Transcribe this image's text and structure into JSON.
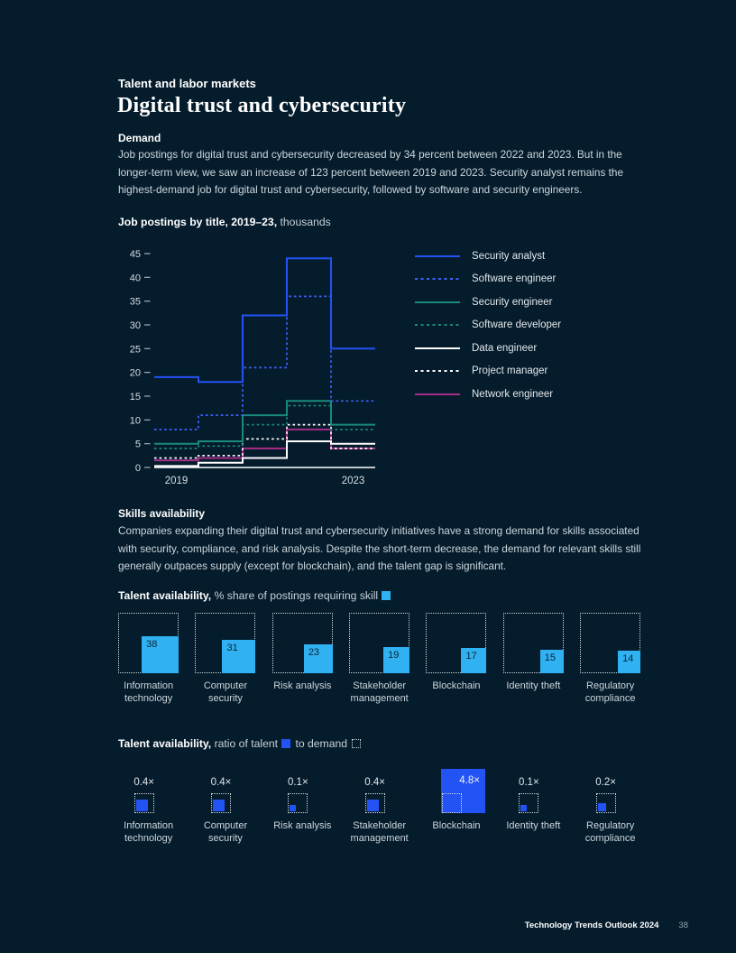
{
  "page": {
    "eyebrow": "Talent and labor markets",
    "title": "Digital trust and cybersecurity"
  },
  "sections": {
    "demand": {
      "heading": "Demand",
      "body": "Job postings for digital trust and cybersecurity decreased by 34 percent between 2022 and 2023. But in the longer-term view, we saw an increase of 123 percent between 2019 and 2023. Security analyst remains the highest-demand job for digital trust and cybersecurity, followed by software and security engineers."
    },
    "skills": {
      "heading": "Skills availability",
      "body": "Companies expanding their digital trust and cybersecurity initiatives have a strong demand for skills associated with security, compliance, and risk analysis. Despite the short-term decrease, the demand for relevant skills still generally outpaces supply (except for blockchain), and the talent gap is significant."
    }
  },
  "colors": {
    "background": "#051c2c",
    "accent_blue": "#2353f5",
    "accent_cyan": "#2fb1f2",
    "teal": "#1a8a7d",
    "magenta": "#a62c87",
    "white": "#ffffff"
  },
  "chart_data": [
    {
      "type": "line",
      "variant": "step",
      "title": "Job postings by title, 2019–23,",
      "title_suffix": "thousands",
      "x": [
        2019,
        2020,
        2021,
        2022,
        2023
      ],
      "x_axis_labels": [
        "2019",
        "2023"
      ],
      "ylim": [
        0,
        45
      ],
      "y_ticks": [
        0,
        5,
        10,
        15,
        20,
        25,
        30,
        35,
        40,
        45
      ],
      "grid": false,
      "legend_position": "right",
      "series": [
        {
          "name": "Security analyst",
          "style": "solid",
          "color": "#2353f5",
          "values": [
            19,
            18,
            32,
            44,
            25
          ]
        },
        {
          "name": "Software engineer",
          "style": "dashed",
          "color": "#3e63ff",
          "values": [
            8,
            11,
            21,
            36,
            14
          ]
        },
        {
          "name": "Security engineer",
          "style": "solid",
          "color": "#1a8a7d",
          "values": [
            5,
            5.5,
            11,
            14,
            9
          ]
        },
        {
          "name": "Software developer",
          "style": "dashed",
          "color": "#1a8a7d",
          "values": [
            4,
            4.5,
            9,
            13,
            8
          ]
        },
        {
          "name": "Data engineer",
          "style": "solid",
          "color": "#ffffff",
          "values": [
            0.3,
            1,
            2,
            5.5,
            5
          ]
        },
        {
          "name": "Project manager",
          "style": "dashed",
          "color": "#ffffff",
          "values": [
            2,
            2.5,
            6,
            9,
            4
          ]
        },
        {
          "name": "Network engineer",
          "style": "solid",
          "color": "#a62c87",
          "values": [
            1.5,
            2,
            4,
            8,
            4
          ]
        }
      ]
    },
    {
      "type": "bar",
      "variant": "area-squares",
      "title": "Talent availability,",
      "title_suffix": "% share of postings requiring skill",
      "max_value": 100,
      "categories": [
        "Information technology",
        "Computer security",
        "Risk analysis",
        "Stakeholder management",
        "Blockchain",
        "Identity theft",
        "Regulatory compliance"
      ],
      "values": [
        38,
        31,
        23,
        19,
        17,
        15,
        14
      ]
    },
    {
      "type": "bar",
      "variant": "ratio-squares",
      "title": "Talent availability,",
      "label_ratio": "ratio of talent",
      "label_demand": "to demand",
      "categories": [
        "Information technology",
        "Computer security",
        "Risk analysis",
        "Stakeholder management",
        "Blockchain",
        "Identity theft",
        "Regulatory compliance"
      ],
      "values": [
        0.4,
        0.4,
        0.1,
        0.4,
        4.8,
        0.1,
        0.2
      ],
      "value_labels": [
        "0.4×",
        "0.4×",
        "0.1×",
        "0.4×",
        "4.8×",
        "0.1×",
        "0.2×"
      ]
    }
  ],
  "footer": {
    "text": "Technology Trends Outlook 2024",
    "page_number": "38"
  }
}
